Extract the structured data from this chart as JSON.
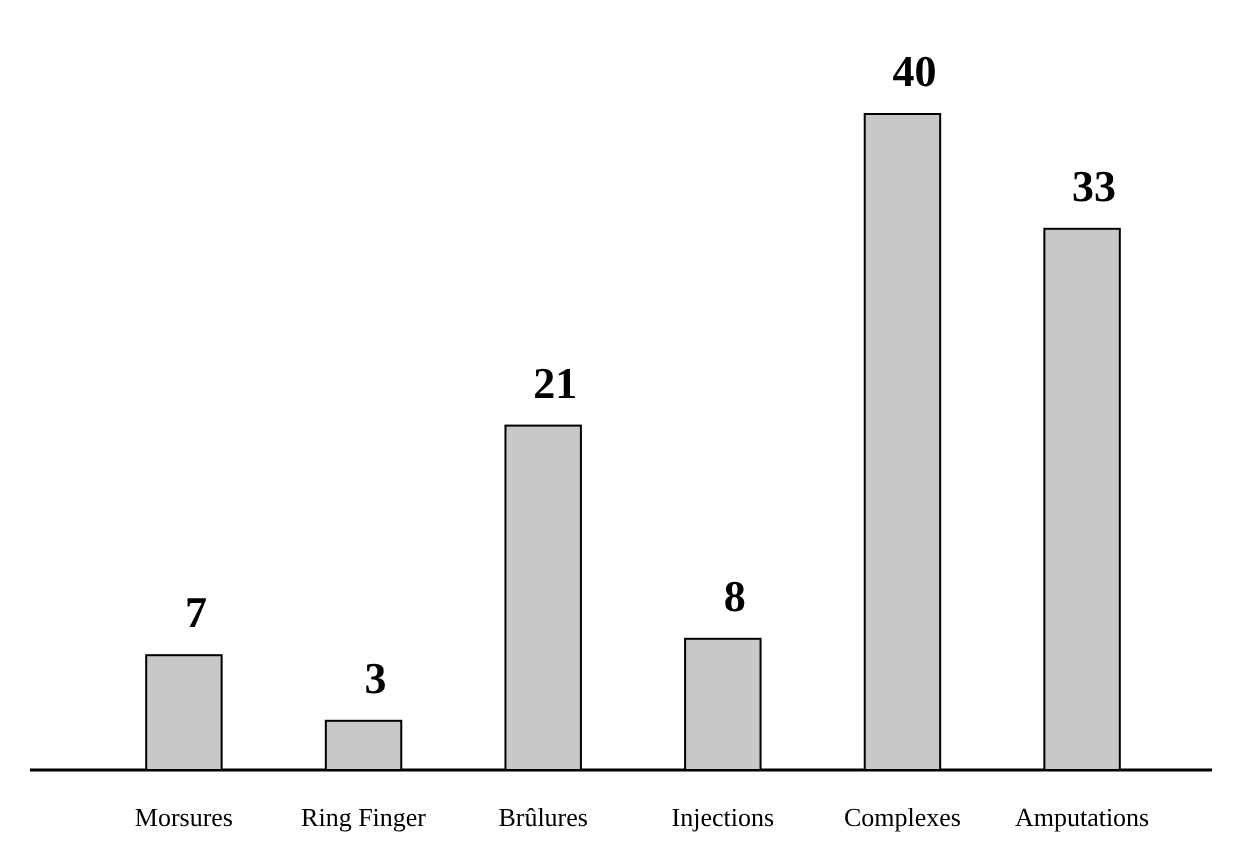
{
  "chart_data": {
    "type": "bar",
    "categories": [
      "Morsures",
      "Ring Finger",
      "Brûlures",
      "Injections",
      "Complexes",
      "Amputations"
    ],
    "values": [
      7,
      3,
      21,
      8,
      40,
      33
    ],
    "color": "#c8c8c8",
    "data_labels": true
  }
}
